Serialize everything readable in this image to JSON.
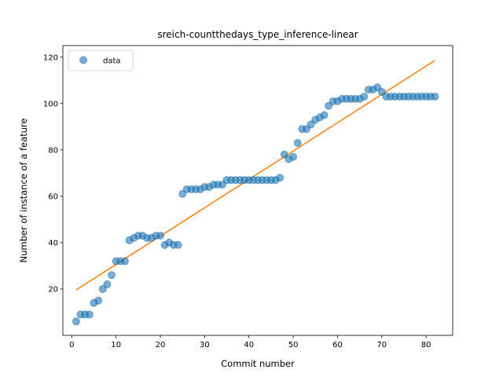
{
  "chart_data": {
    "type": "scatter",
    "title": "sreich-countthedays_type_inference-linear",
    "xlabel": "Commit number",
    "ylabel": "Number of instance of a feature",
    "xlim": [
      -2.0,
      86.0
    ],
    "ylim": [
      0.0,
      125.0
    ],
    "xticks": [
      0,
      10,
      20,
      30,
      40,
      50,
      60,
      70,
      80
    ],
    "yticks": [
      20,
      40,
      60,
      80,
      100,
      120
    ],
    "grid": false,
    "legend_position": "upper-left",
    "series": [
      {
        "name": "data",
        "kind": "scatter",
        "color": "#1f77b4",
        "x": [
          1,
          2,
          3,
          4,
          5,
          6,
          7,
          8,
          9,
          10,
          11,
          12,
          13,
          14,
          15,
          16,
          17,
          18,
          19,
          20,
          21,
          22,
          23,
          24,
          25,
          26,
          27,
          28,
          29,
          30,
          31,
          32,
          33,
          34,
          35,
          36,
          37,
          38,
          39,
          40,
          41,
          42,
          43,
          44,
          45,
          46,
          47,
          48,
          49,
          50,
          51,
          52,
          53,
          54,
          55,
          56,
          57,
          58,
          59,
          60,
          61,
          62,
          63,
          64,
          65,
          66,
          67,
          68,
          69,
          70,
          71,
          72,
          73,
          74,
          75,
          76,
          77,
          78,
          79,
          80,
          81,
          82
        ],
        "y": [
          6,
          9,
          9,
          9,
          14,
          15,
          20,
          22,
          26,
          32,
          32,
          32,
          41,
          42,
          43,
          43,
          42,
          42,
          43,
          43,
          39,
          40,
          39,
          39,
          61,
          63,
          63,
          63,
          63,
          64,
          64,
          65,
          65,
          65,
          67,
          67,
          67,
          67,
          67,
          67,
          67,
          67,
          67,
          67,
          67,
          67,
          68,
          78,
          76,
          77,
          83,
          89,
          89,
          91,
          93,
          94,
          95,
          99,
          101,
          101,
          102,
          102,
          102,
          102,
          102,
          103,
          106,
          106,
          107,
          105,
          103,
          103,
          103,
          103,
          103,
          103,
          103,
          103,
          103,
          103,
          103,
          103
        ]
      },
      {
        "name": "",
        "kind": "line",
        "color": "#ff7f0e",
        "x": [
          1,
          82
        ],
        "y": [
          19.6,
          118.6
        ]
      }
    ]
  }
}
